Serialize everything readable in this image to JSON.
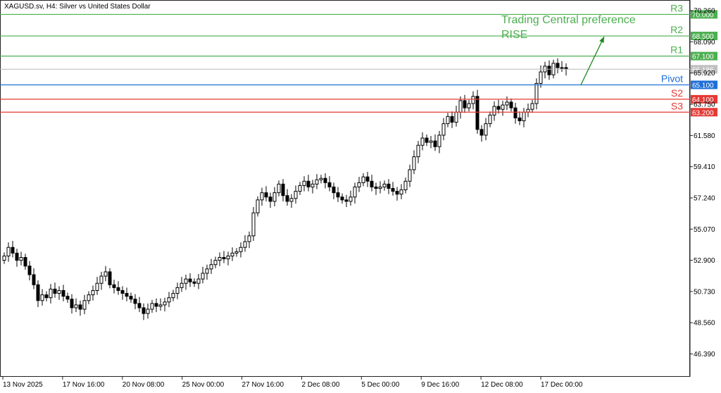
{
  "header": {
    "symbol_title": "XAGUSD.sv, H4:  Silver vs United States Dollar"
  },
  "annotation": {
    "line1": "Trading Central preference",
    "line2": "RISE"
  },
  "colors": {
    "support": "#e53935",
    "resistance": "#4caf50",
    "pivot": "#1e6fd9",
    "arrow": "#1b8a1b",
    "annotation_text": "#4caf50",
    "candle": "#000000",
    "bid_line": "#b8b8b8",
    "bid_label_bg": "#c0c0c0"
  },
  "chart_data": {
    "type": "candlestick",
    "title": "",
    "xlabel": "",
    "ylabel": "",
    "ylim": [
      44.8,
      71.0
    ],
    "grid": false,
    "y_ticks": [
      "70.260",
      "68.090",
      "65.920",
      "63.750",
      "61.580",
      "59.410",
      "57.240",
      "55.070",
      "52.900",
      "50.730",
      "48.560",
      "46.390"
    ],
    "x_ticks": [
      "13 Nov 2025",
      "17 Nov 16:00",
      "20 Nov 08:00",
      "25 Nov 00:00",
      "27 Nov 16:00",
      "2 Dec 08:00",
      "5 Dec 00:00",
      "9 Dec 16:00",
      "12 Dec 08:00",
      "17 Dec 00:00"
    ],
    "current_price": {
      "label": "66.186",
      "value": 66.186
    },
    "levels": [
      {
        "name": "R3",
        "value": 70.0,
        "label": "70.000",
        "kind": "resistance"
      },
      {
        "name": "R2",
        "value": 68.5,
        "label": "68.500",
        "kind": "resistance"
      },
      {
        "name": "R1",
        "value": 67.1,
        "label": "67.100",
        "kind": "resistance"
      },
      {
        "name": "Pivot",
        "value": 65.1,
        "label": "65.100",
        "kind": "pivot"
      },
      {
        "name": "S2",
        "value": 64.1,
        "label": "64.100",
        "kind": "support"
      },
      {
        "name": "S3",
        "value": 63.2,
        "label": "63.200",
        "kind": "support"
      }
    ],
    "closes": [
      53.2,
      53.8,
      53.4,
      52.9,
      53.1,
      52.5,
      51.9,
      51.2,
      50.1,
      50.5,
      50.3,
      50.9,
      50.6,
      50.8,
      50.4,
      50.2,
      49.6,
      49.8,
      49.5,
      50.1,
      50.5,
      50.8,
      51.3,
      51.8,
      52.1,
      51.2,
      51.0,
      50.8,
      50.6,
      50.4,
      50.2,
      49.9,
      49.6,
      49.2,
      49.5,
      49.9,
      49.7,
      49.8,
      50.0,
      50.3,
      50.6,
      51.0,
      51.3,
      51.6,
      51.4,
      51.3,
      51.6,
      52.0,
      52.3,
      52.6,
      52.9,
      53.1,
      53.0,
      53.2,
      53.4,
      53.5,
      53.8,
      54.2,
      54.6,
      56.2,
      57.1,
      57.6,
      57.3,
      57.0,
      57.6,
      58.2,
      57.4,
      57.0,
      57.2,
      57.7,
      58.1,
      58.4,
      58.0,
      58.2,
      58.5,
      58.6,
      58.3,
      58.0,
      57.6,
      57.3,
      57.1,
      57.0,
      57.3,
      58.0,
      58.3,
      58.7,
      58.4,
      58.0,
      57.9,
      58.0,
      58.2,
      57.9,
      57.7,
      57.5,
      57.8,
      58.4,
      59.2,
      60.1,
      60.9,
      61.4,
      61.1,
      61.2,
      60.8,
      61.6,
      62.4,
      62.9,
      62.5,
      63.2,
      64.0,
      63.5,
      63.8,
      64.3,
      62.0,
      61.6,
      62.4,
      63.0,
      63.6,
      63.4,
      63.7,
      63.9,
      63.5,
      62.8,
      62.6,
      63.2,
      63.4,
      63.8,
      65.2,
      66.0,
      66.4,
      65.8,
      66.6,
      66.3,
      66.3,
      66.2
    ]
  }
}
